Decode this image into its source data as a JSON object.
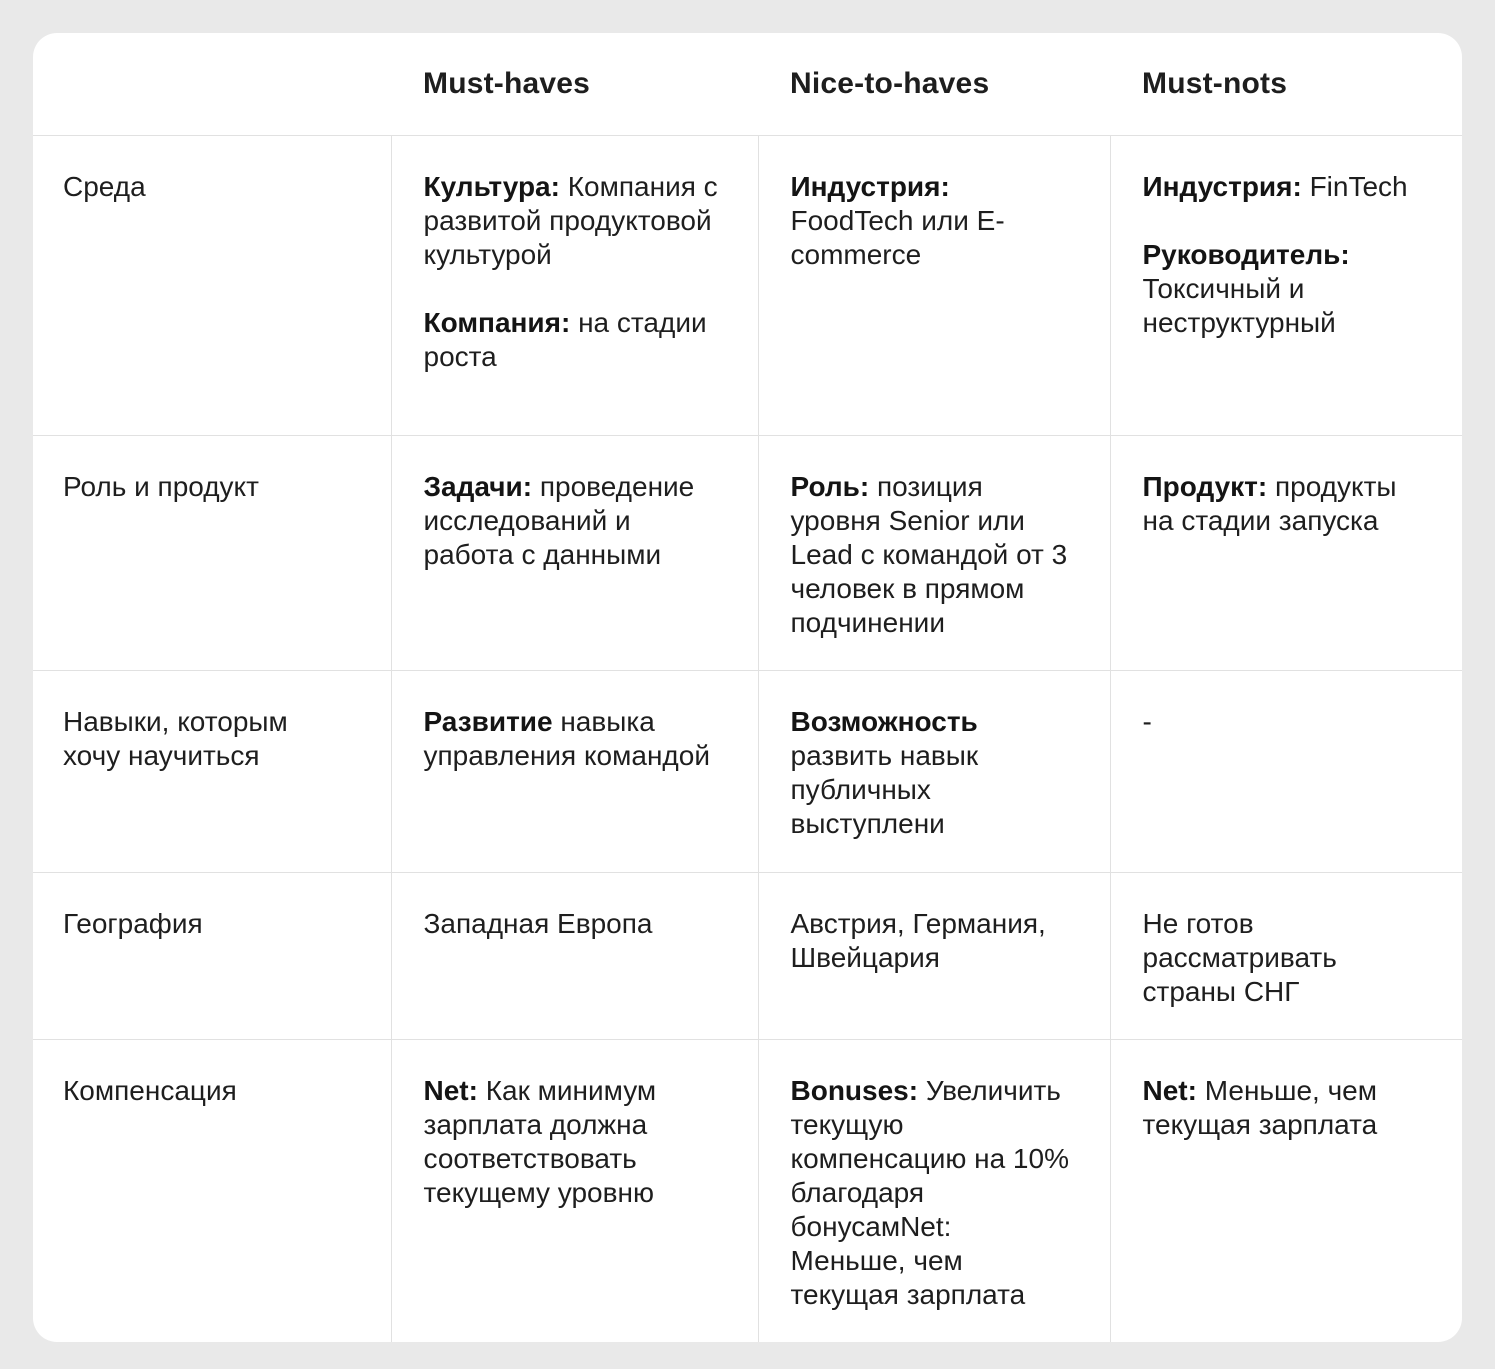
{
  "colors": {
    "page_background": "#e9e9e9",
    "card_background": "#ffffff",
    "text": "#1e1e1e",
    "divider": "#e1e1e1"
  },
  "table": {
    "columns": [
      "",
      "Must-haves",
      "Nice-to-haves",
      "Must-nots"
    ],
    "rows": [
      {
        "label": "Среда",
        "must_haves": [
          {
            "bold": "Культура:",
            "text": "Компания с развитой продуктовой культурой"
          },
          {
            "bold": "Компания:",
            "text": "на стадии роста"
          }
        ],
        "nice_to_haves": [
          {
            "bold": "Индустрия:",
            "text": "FoodTech или E-commerce"
          }
        ],
        "must_nots": [
          {
            "bold": "Индустрия:",
            "text": "FinTech"
          },
          {
            "bold": "Руководитель:",
            "text": "Токсичный и неструктурный"
          }
        ]
      },
      {
        "label": "Роль и продукт",
        "must_haves": [
          {
            "bold": "Задачи:",
            "text": "проведение исследований и работа с данными"
          }
        ],
        "nice_to_haves": [
          {
            "bold": "Роль:",
            "text": "позиция уровня Senior или Lead с командой от 3 человек в прямом подчинении"
          }
        ],
        "must_nots": [
          {
            "bold": "Продукт:",
            "text": "продукты на стадии запуска"
          }
        ]
      },
      {
        "label": "Навыки, которым хочу научиться",
        "must_haves": [
          {
            "bold": "Развитие",
            "text": "навыка управления командой"
          }
        ],
        "nice_to_haves": [
          {
            "bold": "Возможность",
            "text": "развить навык публичных выступлени"
          }
        ],
        "must_nots": [
          {
            "bold": "",
            "text": "-"
          }
        ]
      },
      {
        "label": "География",
        "must_haves": [
          {
            "bold": "",
            "text": "Западная Европа"
          }
        ],
        "nice_to_haves": [
          {
            "bold": "",
            "text": "Австрия, Германия, Швейцария"
          }
        ],
        "must_nots": [
          {
            "bold": "",
            "text": "Не готов рассматривать страны СНГ"
          }
        ]
      },
      {
        "label": "Компенсация",
        "must_haves": [
          {
            "bold": "Net:",
            "text": "Как минимум зарплата должна соответствовать текущему уровню"
          }
        ],
        "nice_to_haves": [
          {
            "bold": "Bonuses:",
            "text": "Увеличить текущую компенсацию на 10% благодаря бонусамNet: Меньше, чем текущая зарплата"
          }
        ],
        "must_nots": [
          {
            "bold": "Net:",
            "text": "Меньше, чем текущая зарплата"
          }
        ]
      }
    ]
  }
}
